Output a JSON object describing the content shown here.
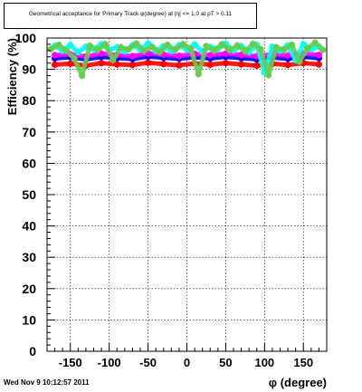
{
  "title": "Geometrical acceptance for Primary Track φ(degree) at |η| <= 1.0 at pT > 0.11",
  "footer": "Wed Nov  9 10:12:57 2011",
  "chart_data": {
    "type": "scatter",
    "title": "Geometrical acceptance for Primary Track φ(degree) at |η| <= 1.0 at pT > 0.11",
    "xlabel": "φ (degree)",
    "ylabel": "Efficiency (%)",
    "xlim": [
      -180,
      180
    ],
    "ylim": [
      0,
      100
    ],
    "x_ticks": [
      -150,
      -100,
      -50,
      0,
      50,
      100,
      150
    ],
    "y_ticks": [
      0,
      10,
      20,
      30,
      40,
      50,
      60,
      70,
      80,
      90,
      100
    ],
    "grid": true,
    "series": [
      {
        "color": "#ff0000",
        "x": [
          -170,
          -150,
          -130,
          -110,
          -90,
          -70,
          -50,
          -30,
          -10,
          10,
          30,
          50,
          70,
          90,
          110,
          130,
          150,
          170
        ],
        "y": [
          91.5,
          91.8,
          91.2,
          92.0,
          91.6,
          91.4,
          92.1,
          91.7,
          91.3,
          91.9,
          91.5,
          92.0,
          91.6,
          91.2,
          91.8,
          91.4,
          92.0,
          91.6
        ]
      },
      {
        "color": "#0000ff",
        "x": [
          -170,
          -150,
          -130,
          -110,
          -90,
          -70,
          -50,
          -30,
          -10,
          10,
          30,
          50,
          70,
          90,
          110,
          130,
          150,
          170
        ],
        "y": [
          93.5,
          93.9,
          93.2,
          94.0,
          93.6,
          93.3,
          94.1,
          93.7,
          93.4,
          93.9,
          93.5,
          94.0,
          93.6,
          93.2,
          93.8,
          93.4,
          94.0,
          93.6
        ]
      },
      {
        "color": "#ff00ff",
        "x": [
          -170,
          -150,
          -130,
          -110,
          -90,
          -70,
          -50,
          -30,
          -10,
          10,
          30,
          50,
          70,
          90,
          110,
          130,
          150,
          170
        ],
        "y": [
          94.5,
          94.8,
          94.1,
          95.0,
          94.6,
          94.2,
          95.1,
          94.7,
          94.3,
          94.9,
          94.5,
          95.0,
          94.6,
          94.2,
          94.8,
          94.4,
          95.0,
          94.6
        ]
      },
      {
        "color": "#00ffff",
        "x": [
          -170,
          -160,
          -150,
          -140,
          -130,
          -120,
          -110,
          -100,
          -90,
          -80,
          -70,
          -60,
          -50,
          -40,
          -30,
          -20,
          -10,
          0,
          10,
          20,
          30,
          40,
          50,
          60,
          70,
          80,
          90,
          100,
          110,
          120,
          130,
          140,
          150,
          160,
          170
        ],
        "y": [
          97.5,
          96.0,
          97.8,
          95.5,
          97.2,
          96.5,
          98.0,
          96.2,
          97.0,
          95.8,
          97.6,
          96.4,
          98.2,
          96.0,
          97.3,
          95.9,
          97.7,
          96.3,
          97.9,
          95.7,
          97.1,
          96.6,
          98.1,
          96.1,
          97.4,
          95.6,
          97.8,
          89.0,
          97.2,
          96.0,
          97.6,
          93.0,
          98.0,
          96.4,
          97.3
        ]
      },
      {
        "color": "#66cc4c",
        "x": [
          -175,
          -165,
          -155,
          -145,
          -135,
          -125,
          -115,
          -105,
          -95,
          -85,
          -75,
          -65,
          -55,
          -45,
          -35,
          -25,
          -15,
          -5,
          5,
          15,
          25,
          35,
          45,
          55,
          65,
          75,
          85,
          95,
          105,
          115,
          125,
          135,
          145,
          155,
          165,
          175
        ],
        "y": [
          96.5,
          97.8,
          96.0,
          93.5,
          88.0,
          97.5,
          96.2,
          98.0,
          93.0,
          97.0,
          96.4,
          98.2,
          96.0,
          97.2,
          95.5,
          97.8,
          96.3,
          98.0,
          96.6,
          88.5,
          97.4,
          96.0,
          98.0,
          96.2,
          97.6,
          95.8,
          98.1,
          96.4,
          88.2,
          97.0,
          96.3,
          97.8,
          92.5,
          96.6,
          98.5,
          96.2
        ]
      }
    ]
  }
}
